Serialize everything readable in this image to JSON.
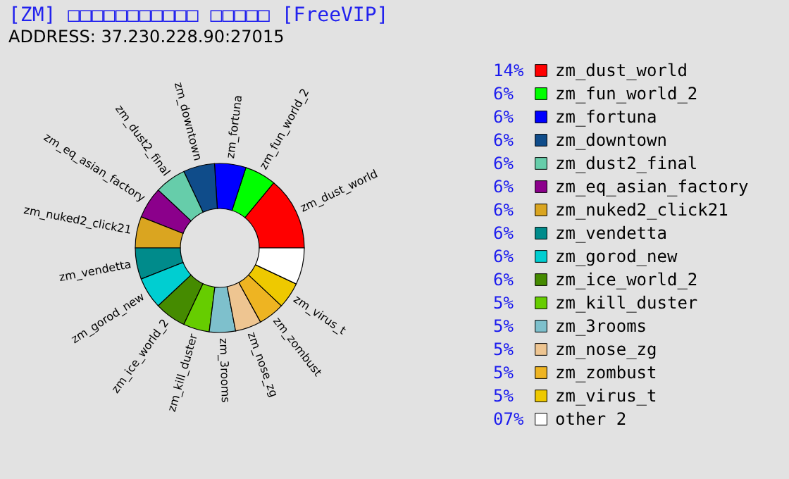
{
  "chart_data": {
    "type": "donut",
    "title": "[ZM] □□□□□□□□□□□ □□□□□ [FreeVIP]",
    "subtitle": "ADDRESS: 37.230.228.90:27015",
    "categories": [
      "zm_dust_world",
      "zm_fun_world_2",
      "zm_fortuna",
      "zm_downtown",
      "zm_dust2_final",
      "zm_eq_asian_factory",
      "zm_nuked2_click21",
      "zm_vendetta",
      "zm_gorod_new",
      "zm_ice_world_2",
      "zm_kill_duster",
      "zm_3rooms",
      "zm_nose_zg",
      "zm_zombust",
      "zm_virus_t",
      "other 2"
    ],
    "values": [
      14,
      6,
      6,
      6,
      6,
      6,
      6,
      6,
      6,
      6,
      5,
      5,
      5,
      5,
      5,
      7
    ],
    "value_labels": [
      "14%",
      "6%",
      "6%",
      "6%",
      "6%",
      "6%",
      "6%",
      "6%",
      "6%",
      "6%",
      "5%",
      "5%",
      "5%",
      "5%",
      "5%",
      "07%"
    ],
    "colors": [
      "#ff0000",
      "#00ff00",
      "#0000ff",
      "#0f4c8a",
      "#66cdaa",
      "#8b008b",
      "#daa520",
      "#008b8b",
      "#00ced1",
      "#458b00",
      "#66cd00",
      "#7ec0cc",
      "#eec591",
      "#eeb422",
      "#eec900",
      "#ffffff"
    ],
    "legend": "right"
  }
}
